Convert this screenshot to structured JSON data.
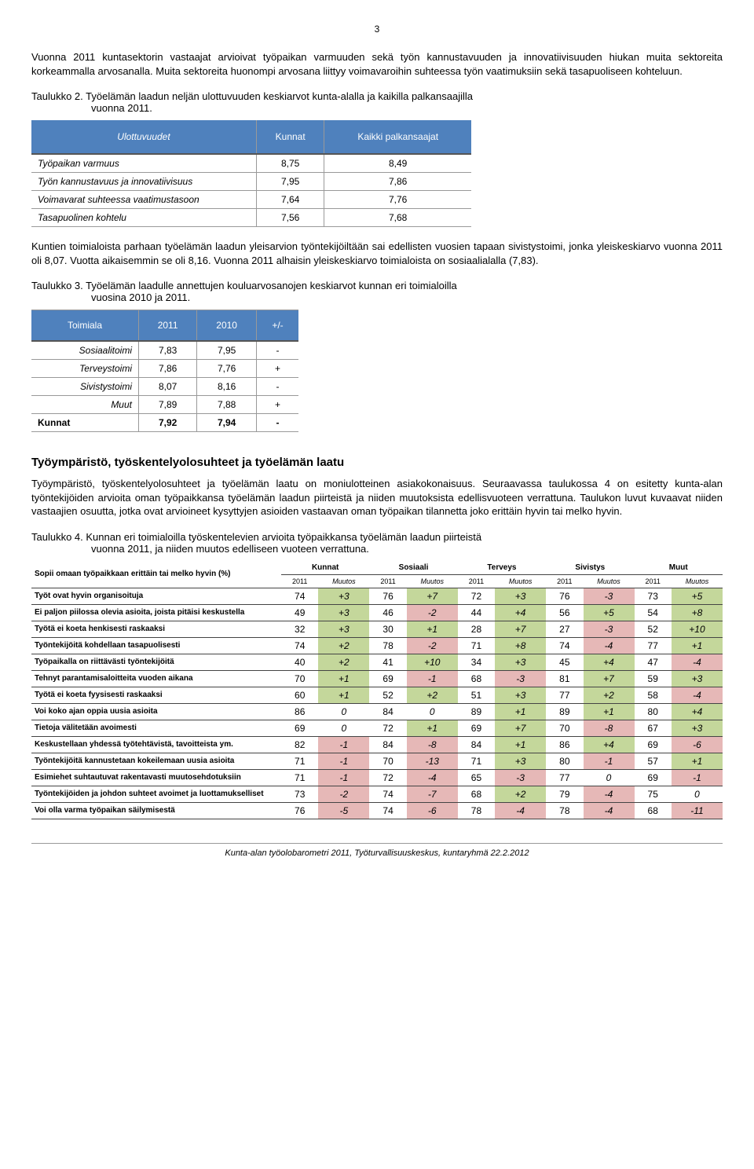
{
  "page_number": "3",
  "para1": "Vuonna 2011 kuntasektorin vastaajat arvioivat työpaikan varmuuden sekä työn kannustavuuden ja innovatiivisuuden hiukan muita sektoreita korkeammalla arvosanalla. Muita sektoreita huonompi arvosana liittyy voimavaroihin suhteessa työn vaatimuksiin sekä tasapuoliseen kohteluun.",
  "caption2a": "Taulukko 2. Työelämän laadun neljän ulottuvuuden keskiarvot kunta-alalla ja kaikilla palkansaajilla",
  "caption2b": "vuonna 2011.",
  "table2": {
    "headers": [
      "Ulottuvuudet",
      "Kunnat",
      "Kaikki palkansaajat"
    ],
    "rows": [
      [
        "Työpaikan varmuus",
        "8,75",
        "8,49"
      ],
      [
        "Työn kannustavuus ja innovatiivisuus",
        "7,95",
        "7,86"
      ],
      [
        "Voimavarat suhteessa vaatimustasoon",
        "7,64",
        "7,76"
      ],
      [
        "Tasapuolinen kohtelu",
        "7,56",
        "7,68"
      ]
    ]
  },
  "para2": "Kuntien toimialoista parhaan työelämän laadun yleisarvion työntekijöiltään sai edellisten vuosien tapaan sivistystoimi, jonka yleiskeskiarvo vuonna 2011 oli 8,07. Vuotta aikaisemmin se oli 8,16. Vuonna 2011 alhaisin yleiskeskiarvo toimialoista on sosiaalialalla (7,83).",
  "caption3a": "Taulukko 3. Työelämän laadulle annettujen kouluarvosanojen keskiarvot kunnan eri toimialoilla",
  "caption3b": "vuosina 2010 ja 2011.",
  "table3": {
    "headers": [
      "Toimiala",
      "2011",
      "2010",
      "+/-"
    ],
    "rows": [
      [
        "Sosiaalitoimi",
        "7,83",
        "7,95",
        "-"
      ],
      [
        "Terveystoimi",
        "7,86",
        "7,76",
        "+"
      ],
      [
        "Sivistystoimi",
        "8,07",
        "8,16",
        "-"
      ],
      [
        "Muut",
        "7,89",
        "7,88",
        "+"
      ]
    ],
    "total": [
      "Kunnat",
      "7,92",
      "7,94",
      "-"
    ]
  },
  "h2": "Työympäristö, työskentelyolosuhteet ja työelämän laatu",
  "para3": "Työympäristö, työskentelyolosuhteet ja työelämän laatu on moniulotteinen asiakokonaisuus. Seuraavassa taulukossa 4 on esitetty kunta-alan työntekijöiden arvioita oman työpaikkansa työelämän laadun piirteistä ja niiden muutoksista edellisvuoteen verrattuna. Taulukon luvut kuvaavat niiden vastaajien osuutta, jotka ovat arvioineet kysyttyjen asioiden vastaavan oman työpaikan tilannetta joko erittäin hyvin tai melko hyvin.",
  "caption4a": "Taulukko 4. Kunnan eri toimialoilla työskentelevien arvioita työpaikkansa työelämän laadun piirteistä",
  "caption4b": "vuonna 2011, ja niiden muutos edelliseen vuoteen verrattuna.",
  "table4": {
    "main_header": "Sopii omaan työpaikkaan erittäin tai melko hyvin (%)",
    "groups": [
      "Kunnat",
      "Sosiaali",
      "Terveys",
      "Sivistys",
      "Muut"
    ],
    "sub": [
      "2011",
      "Muutos"
    ],
    "rows": [
      {
        "label": "Työt ovat hyvin organisoituja",
        "v": [
          [
            "74",
            "+3",
            "pos"
          ],
          [
            "76",
            "+7",
            "pos"
          ],
          [
            "72",
            "+3",
            "pos"
          ],
          [
            "76",
            "-3",
            "neg"
          ],
          [
            "73",
            "+5",
            "pos"
          ]
        ]
      },
      {
        "label": "Ei paljon piilossa olevia asioita, joista pitäisi keskustella",
        "v": [
          [
            "49",
            "+3",
            "pos"
          ],
          [
            "46",
            "-2",
            "neg"
          ],
          [
            "44",
            "+4",
            "pos"
          ],
          [
            "56",
            "+5",
            "pos"
          ],
          [
            "54",
            "+8",
            "pos"
          ]
        ]
      },
      {
        "label": "Työtä ei koeta henkisesti raskaaksi",
        "v": [
          [
            "32",
            "+3",
            "pos"
          ],
          [
            "30",
            "+1",
            "pos"
          ],
          [
            "28",
            "+7",
            "pos"
          ],
          [
            "27",
            "-3",
            "neg"
          ],
          [
            "52",
            "+10",
            "pos"
          ]
        ]
      },
      {
        "label": "Työntekijöitä kohdellaan tasapuolisesti",
        "v": [
          [
            "74",
            "+2",
            "pos"
          ],
          [
            "78",
            "-2",
            "neg"
          ],
          [
            "71",
            "+8",
            "pos"
          ],
          [
            "74",
            "-4",
            "neg"
          ],
          [
            "77",
            "+1",
            "pos"
          ]
        ]
      },
      {
        "label": "Työpaikalla on riittävästi työntekijöitä",
        "v": [
          [
            "40",
            "+2",
            "pos"
          ],
          [
            "41",
            "+10",
            "pos"
          ],
          [
            "34",
            "+3",
            "pos"
          ],
          [
            "45",
            "+4",
            "pos"
          ],
          [
            "47",
            "-4",
            "neg"
          ]
        ]
      },
      {
        "label": "Tehnyt parantamisaloitteita vuoden aikana",
        "v": [
          [
            "70",
            "+1",
            "pos"
          ],
          [
            "69",
            "-1",
            "neg"
          ],
          [
            "68",
            "-3",
            "neg"
          ],
          [
            "81",
            "+7",
            "pos"
          ],
          [
            "59",
            "+3",
            "pos"
          ]
        ]
      },
      {
        "label": "Työtä ei koeta fyysisesti raskaaksi",
        "v": [
          [
            "60",
            "+1",
            "pos"
          ],
          [
            "52",
            "+2",
            "pos"
          ],
          [
            "51",
            "+3",
            "pos"
          ],
          [
            "77",
            "+2",
            "pos"
          ],
          [
            "58",
            "-4",
            "neg"
          ]
        ]
      },
      {
        "label": "Voi koko ajan oppia uusia asioita",
        "v": [
          [
            "86",
            "0",
            ""
          ],
          [
            "84",
            "0",
            ""
          ],
          [
            "89",
            "+1",
            "pos"
          ],
          [
            "89",
            "+1",
            "pos"
          ],
          [
            "80",
            "+4",
            "pos"
          ]
        ]
      },
      {
        "label": "Tietoja välitetään avoimesti",
        "v": [
          [
            "69",
            "0",
            ""
          ],
          [
            "72",
            "+1",
            "pos"
          ],
          [
            "69",
            "+7",
            "pos"
          ],
          [
            "70",
            "-8",
            "neg"
          ],
          [
            "67",
            "+3",
            "pos"
          ]
        ]
      },
      {
        "label": "Keskustellaan yhdessä työtehtävistä, tavoitteista ym.",
        "v": [
          [
            "82",
            "-1",
            "neg"
          ],
          [
            "84",
            "-8",
            "neg"
          ],
          [
            "84",
            "+1",
            "pos"
          ],
          [
            "86",
            "+4",
            "pos"
          ],
          [
            "69",
            "-6",
            "neg"
          ]
        ]
      },
      {
        "label": "Työntekijöitä kannustetaan kokeilemaan uusia asioita",
        "v": [
          [
            "71",
            "-1",
            "neg"
          ],
          [
            "70",
            "-13",
            "neg"
          ],
          [
            "71",
            "+3",
            "pos"
          ],
          [
            "80",
            "-1",
            "neg"
          ],
          [
            "57",
            "+1",
            "pos"
          ]
        ]
      },
      {
        "label": "Esimiehet suhtautuvat rakentavasti muutosehdotuksiin",
        "v": [
          [
            "71",
            "-1",
            "neg"
          ],
          [
            "72",
            "-4",
            "neg"
          ],
          [
            "65",
            "-3",
            "neg"
          ],
          [
            "77",
            "0",
            ""
          ],
          [
            "69",
            "-1",
            "neg"
          ]
        ]
      },
      {
        "label": "Työntekijöiden ja johdon suhteet avoimet ja luottamukselliset",
        "v": [
          [
            "73",
            "-2",
            "neg"
          ],
          [
            "74",
            "-7",
            "neg"
          ],
          [
            "68",
            "+2",
            "pos"
          ],
          [
            "79",
            "-4",
            "neg"
          ],
          [
            "75",
            "0",
            ""
          ]
        ]
      },
      {
        "label": "Voi olla varma työpaikan säilymisestä",
        "v": [
          [
            "76",
            "-5",
            "neg"
          ],
          [
            "74",
            "-6",
            "neg"
          ],
          [
            "78",
            "-4",
            "neg"
          ],
          [
            "78",
            "-4",
            "neg"
          ],
          [
            "68",
            "-11",
            "neg"
          ]
        ]
      }
    ]
  },
  "footer": "Kunta-alan työolobarometri 2011, Työturvallisuuskeskus, kuntaryhmä 22.2.2012",
  "colors": {
    "header_bg": "#4f81bd",
    "pos": "#c4d79b",
    "neg": "#e6b8b7"
  }
}
